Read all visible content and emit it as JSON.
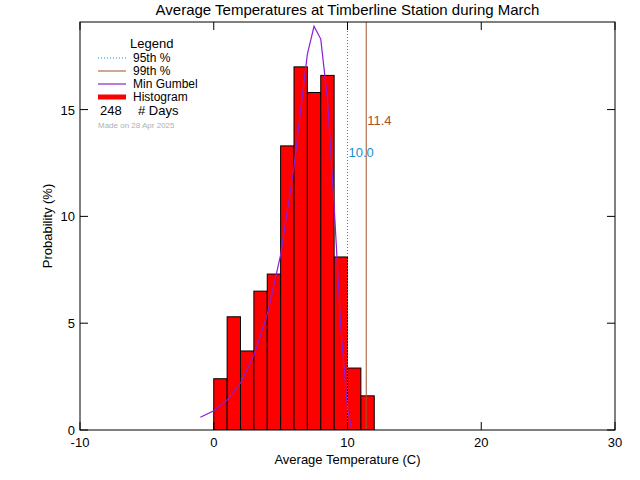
{
  "chart_data": {
    "type": "histogram",
    "title": "Average Temperatures at Timberline Station during March",
    "x_label": "Average Temperature (C)",
    "y_label": "Probability (%)",
    "xlim": [
      -10,
      30
    ],
    "xticks": [
      -10,
      0,
      10,
      20,
      30
    ],
    "ylim": [
      0,
      19.1
    ],
    "yticks": [
      0,
      5,
      10,
      15
    ],
    "legend": "top-left",
    "legend_title": "Legend",
    "bins": [
      0,
      1,
      2,
      3,
      4,
      5,
      6,
      7,
      8,
      9,
      10,
      11,
      12
    ],
    "series": [
      {
        "name": "Histogram",
        "type": "bar",
        "color": "#ff0000",
        "values": [
          2.4,
          5.3,
          3.7,
          6.5,
          7.3,
          13.3,
          17.0,
          15.8,
          16.6,
          8.1,
          2.9,
          1.6
        ]
      },
      {
        "name": "Min Gumbel",
        "type": "line",
        "color": "#8a1fd6",
        "line_style": "solid",
        "x": [
          -1,
          0,
          1,
          2,
          3,
          4,
          5,
          6,
          6.5,
          7,
          7.5,
          8,
          8.5,
          9,
          9.5,
          10,
          10.3
        ],
        "values": [
          0.6,
          0.9,
          1.4,
          2.2,
          3.5,
          5.4,
          8.2,
          12.3,
          15.0,
          17.6,
          18.9,
          18.3,
          15.5,
          10.5,
          4.8,
          1.0,
          0.1
        ]
      }
    ],
    "percentiles": [
      {
        "name": "95th %",
        "value": 10.0,
        "label": "10.0",
        "color": "#1a8fd0",
        "line_style": "dotted"
      },
      {
        "name": "99th %",
        "value": 11.4,
        "label": "11.4",
        "color": "#a0522d",
        "line_style": "solid"
      }
    ],
    "days": {
      "value": 248,
      "label": "# Days"
    },
    "annotations": [
      "Made on 28 Apr 2025"
    ]
  }
}
